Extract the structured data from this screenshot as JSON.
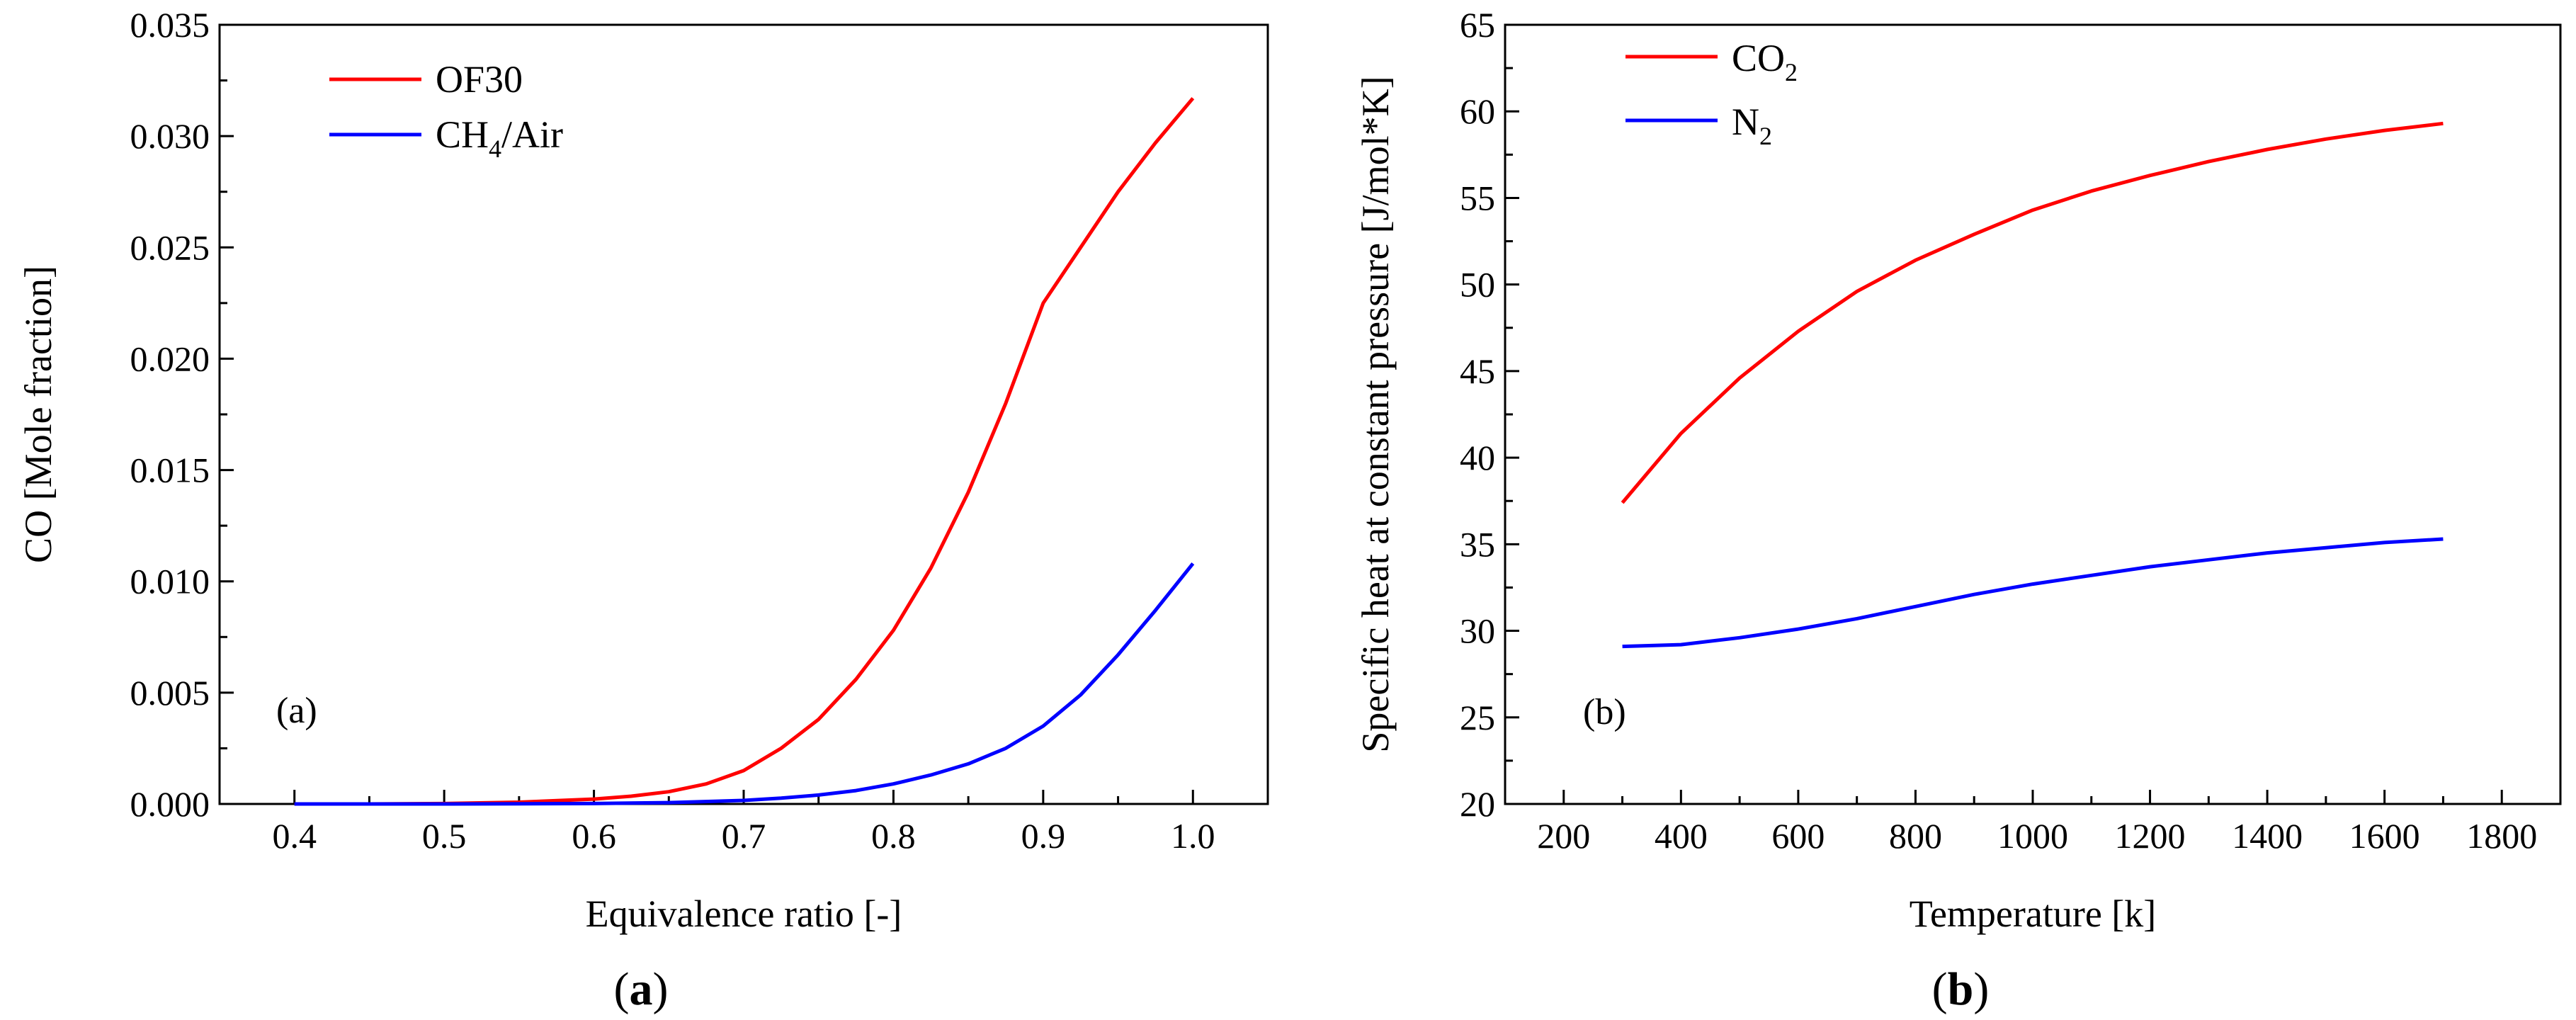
{
  "chart_data": [
    {
      "id": "a",
      "type": "line",
      "xlabel": "Equivalence ratio [-]",
      "ylabel": "CO [Mole fraction]",
      "xlim": [
        0.35,
        1.05
      ],
      "ylim": [
        0,
        0.035
      ],
      "xticks": [
        0.4,
        0.5,
        0.6,
        0.7,
        0.8,
        0.9,
        1.0
      ],
      "xtick_labels": [
        "0.4",
        "0.5",
        "0.6",
        "0.7",
        "0.8",
        "0.9",
        "1.0"
      ],
      "yticks": [
        0,
        0.005,
        0.01,
        0.015,
        0.02,
        0.025,
        0.03,
        0.035
      ],
      "ytick_labels": [
        "0.000",
        "0.005",
        "0.010",
        "0.015",
        "0.020",
        "0.025",
        "0.030",
        "0.035"
      ],
      "panel_label": "(a)",
      "legend_position": "top-left",
      "series": [
        {
          "name": "OF30",
          "name_main": "OF30",
          "name_sub": "",
          "name_tail": "",
          "color": "#ff0000",
          "x": [
            0.4,
            0.45,
            0.5,
            0.55,
            0.6,
            0.625,
            0.65,
            0.675,
            0.7,
            0.725,
            0.75,
            0.775,
            0.8,
            0.825,
            0.85,
            0.875,
            0.9,
            0.925,
            0.95,
            0.975,
            1.0
          ],
          "y": [
            0,
            0,
            2e-05,
            8e-05,
            0.00022,
            0.00035,
            0.00055,
            0.0009,
            0.0015,
            0.0025,
            0.0038,
            0.0056,
            0.0078,
            0.0106,
            0.014,
            0.018,
            0.0225,
            0.025,
            0.0275,
            0.0297,
            0.0317
          ]
        },
        {
          "name": "CH4/Air",
          "name_main": "CH",
          "name_sub": "4",
          "name_tail": "/Air",
          "color": "#0000ff",
          "x": [
            0.4,
            0.45,
            0.5,
            0.55,
            0.6,
            0.65,
            0.7,
            0.725,
            0.75,
            0.775,
            0.8,
            0.825,
            0.85,
            0.875,
            0.9,
            0.925,
            0.95,
            0.975,
            1.0
          ],
          "y": [
            0,
            0,
            0,
            1e-05,
            2e-05,
            6e-05,
            0.00016,
            0.00026,
            0.0004,
            0.0006,
            0.0009,
            0.0013,
            0.0018,
            0.0025,
            0.0035,
            0.0049,
            0.0067,
            0.0087,
            0.0108
          ]
        }
      ]
    },
    {
      "id": "b",
      "type": "line",
      "xlabel": "Temperature [k]",
      "ylabel": "Specific heat at constant pressure [J/mol*K]",
      "xlim": [
        100,
        1900
      ],
      "ylim": [
        20,
        65
      ],
      "xticks": [
        200,
        400,
        600,
        800,
        1000,
        1200,
        1400,
        1600,
        1800
      ],
      "xtick_labels": [
        "200",
        "400",
        "600",
        "800",
        "1000",
        "1200",
        "1400",
        "1600",
        "1800"
      ],
      "yticks": [
        20,
        25,
        30,
        35,
        40,
        45,
        50,
        55,
        60,
        65
      ],
      "ytick_labels": [
        "20",
        "25",
        "30",
        "35",
        "40",
        "45",
        "50",
        "55",
        "60",
        "65"
      ],
      "panel_label": "(b)",
      "legend_position": "top-left",
      "series": [
        {
          "name": "CO2",
          "name_main": "CO",
          "name_sub": "2",
          "name_tail": "",
          "color": "#ff0000",
          "x": [
            300,
            400,
            500,
            600,
            700,
            800,
            900,
            1000,
            1100,
            1200,
            1300,
            1400,
            1500,
            1600,
            1700
          ],
          "y": [
            37.4,
            41.4,
            44.6,
            47.3,
            49.6,
            51.4,
            52.9,
            54.3,
            55.4,
            56.3,
            57.1,
            57.8,
            58.4,
            58.9,
            59.3
          ]
        },
        {
          "name": "N2",
          "name_main": "N",
          "name_sub": "2",
          "name_tail": "",
          "color": "#0000ff",
          "x": [
            300,
            400,
            500,
            600,
            700,
            800,
            900,
            1000,
            1100,
            1200,
            1300,
            1400,
            1500,
            1600,
            1700
          ],
          "y": [
            29.1,
            29.2,
            29.6,
            30.1,
            30.7,
            31.4,
            32.1,
            32.7,
            33.2,
            33.7,
            34.1,
            34.5,
            34.8,
            35.1,
            35.3
          ]
        }
      ]
    }
  ],
  "captions": [
    {
      "open": "(",
      "letter": "a",
      "close": ")"
    },
    {
      "open": "(",
      "letter": "b",
      "close": ")"
    }
  ]
}
